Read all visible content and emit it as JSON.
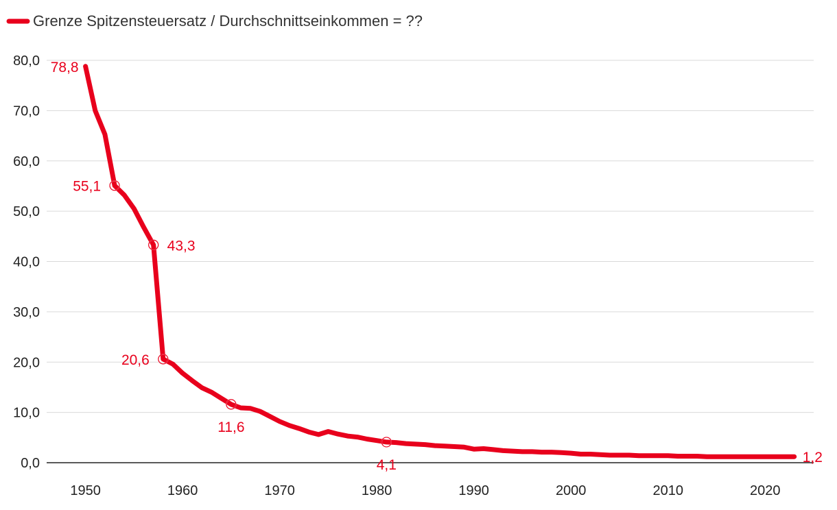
{
  "chart_data": {
    "type": "line",
    "title": "",
    "xlabel": "",
    "ylabel": "",
    "xlim": [
      1946,
      2025
    ],
    "ylim": [
      0,
      80
    ],
    "y_ticks": [
      "0,0",
      "10,0",
      "20,0",
      "30,0",
      "40,0",
      "50,0",
      "60,0",
      "70,0",
      "80,0"
    ],
    "x_ticks": [
      "1950",
      "1960",
      "1970",
      "1980",
      "1990",
      "2000",
      "2010",
      "2020"
    ],
    "grid": "horizontal",
    "legend_position": "top-left",
    "color": "#e8001c",
    "series": [
      {
        "name": "Grenze Spitzensteuersatz / Durchschnittseinkommen = ??",
        "x": [
          1950,
          1951,
          1952,
          1953,
          1954,
          1955,
          1956,
          1957,
          1958,
          1959,
          1960,
          1961,
          1962,
          1963,
          1964,
          1965,
          1966,
          1967,
          1968,
          1969,
          1970,
          1971,
          1972,
          1973,
          1974,
          1975,
          1976,
          1977,
          1978,
          1979,
          1980,
          1981,
          1982,
          1983,
          1984,
          1985,
          1986,
          1987,
          1988,
          1989,
          1990,
          1991,
          1992,
          1993,
          1994,
          1995,
          1996,
          1997,
          1998,
          1999,
          2000,
          2001,
          2002,
          2003,
          2004,
          2005,
          2006,
          2007,
          2008,
          2009,
          2010,
          2011,
          2012,
          2013,
          2014,
          2015,
          2016,
          2017,
          2018,
          2019,
          2020,
          2021,
          2022,
          2023
        ],
        "values": [
          78.8,
          70.0,
          65.3,
          55.1,
          53.2,
          50.5,
          46.8,
          43.3,
          20.6,
          19.6,
          17.8,
          16.3,
          14.9,
          14.0,
          12.8,
          11.6,
          10.9,
          10.8,
          10.2,
          9.2,
          8.2,
          7.4,
          6.8,
          6.1,
          5.6,
          6.2,
          5.7,
          5.3,
          5.1,
          4.7,
          4.4,
          4.1,
          4.0,
          3.8,
          3.7,
          3.6,
          3.4,
          3.3,
          3.2,
          3.1,
          2.7,
          2.8,
          2.6,
          2.4,
          2.3,
          2.2,
          2.2,
          2.1,
          2.1,
          2.0,
          1.9,
          1.7,
          1.7,
          1.6,
          1.5,
          1.5,
          1.5,
          1.4,
          1.4,
          1.4,
          1.4,
          1.3,
          1.3,
          1.3,
          1.2,
          1.2,
          1.2,
          1.2,
          1.2,
          1.2,
          1.2,
          1.2,
          1.2,
          1.2
        ]
      }
    ],
    "markers": [
      {
        "x": 1950,
        "value": 78.8,
        "label": "78,8",
        "circle": false,
        "label_side": "left"
      },
      {
        "x": 1953,
        "value": 55.1,
        "label": "55,1",
        "circle": true,
        "label_side": "left"
      },
      {
        "x": 1957,
        "value": 43.3,
        "label": "43,3",
        "circle": true,
        "label_side": "right"
      },
      {
        "x": 1958,
        "value": 20.6,
        "label": "20,6",
        "circle": true,
        "label_side": "left"
      },
      {
        "x": 1965,
        "value": 11.6,
        "label": "11,6",
        "circle": true,
        "label_side": "below"
      },
      {
        "x": 1981,
        "value": 4.1,
        "label": "4,1",
        "circle": true,
        "label_side": "below"
      },
      {
        "x": 2023,
        "value": 1.2,
        "label": "1,2",
        "circle": false,
        "label_side": "right"
      }
    ]
  }
}
